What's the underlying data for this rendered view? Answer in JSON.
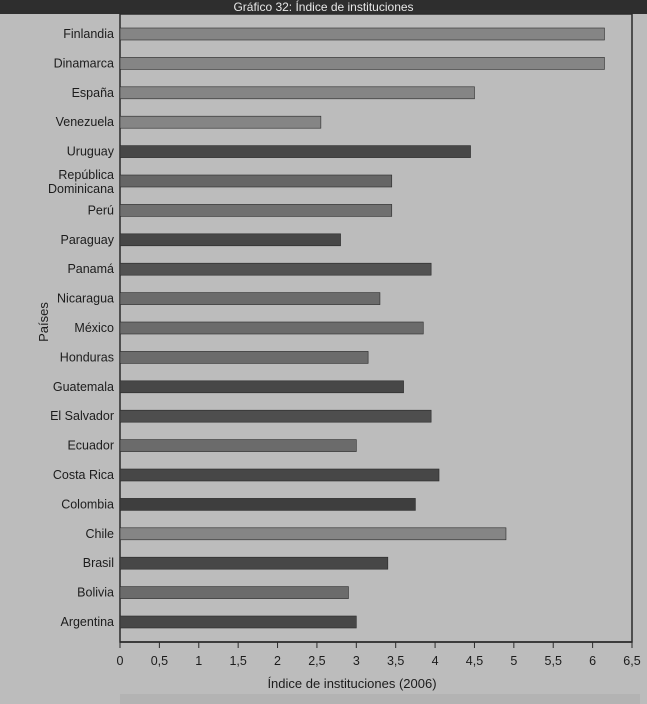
{
  "banner": "Gráfico 32: Índice de instituciones",
  "chart_data": {
    "type": "bar",
    "orientation": "horizontal",
    "title": "Gráfico 32: Índice de instituciones",
    "xlabel": "Índice de instituciones (2006)",
    "ylabel": "Países",
    "xlim": [
      0,
      6.5
    ],
    "xticks": [
      "0",
      "0,5",
      "1",
      "1,5",
      "2",
      "2,5",
      "3",
      "3,5",
      "4",
      "4,5",
      "5",
      "5,5",
      "6",
      "6,5"
    ],
    "grid": false,
    "categories": [
      "Finlandia",
      "Dinamarca",
      "España",
      "Venezuela",
      "Uruguay",
      "República Dominicana",
      "Perú",
      "Paraguay",
      "Panamá",
      "Nicaragua",
      "México",
      "Honduras",
      "Guatemala",
      "El Salvador",
      "Ecuador",
      "Costa Rica",
      "Colombia",
      "Chile",
      "Brasil",
      "Bolivia",
      "Argentina"
    ],
    "values": [
      6.15,
      6.15,
      4.5,
      2.55,
      4.45,
      3.45,
      3.45,
      2.8,
      3.95,
      3.3,
      3.85,
      3.15,
      3.6,
      3.95,
      3.0,
      4.05,
      3.75,
      4.9,
      3.4,
      2.9,
      3.0
    ],
    "colors": [
      "#858585",
      "#858585",
      "#858585",
      "#858585",
      "#474747",
      "#666666",
      "#707070",
      "#474747",
      "#525252",
      "#6b6b6b",
      "#6b6b6b",
      "#6b6b6b",
      "#474747",
      "#4e4e4e",
      "#6b6b6b",
      "#474747",
      "#3e3e3e",
      "#858585",
      "#474747",
      "#6b6b6b",
      "#474747"
    ]
  }
}
